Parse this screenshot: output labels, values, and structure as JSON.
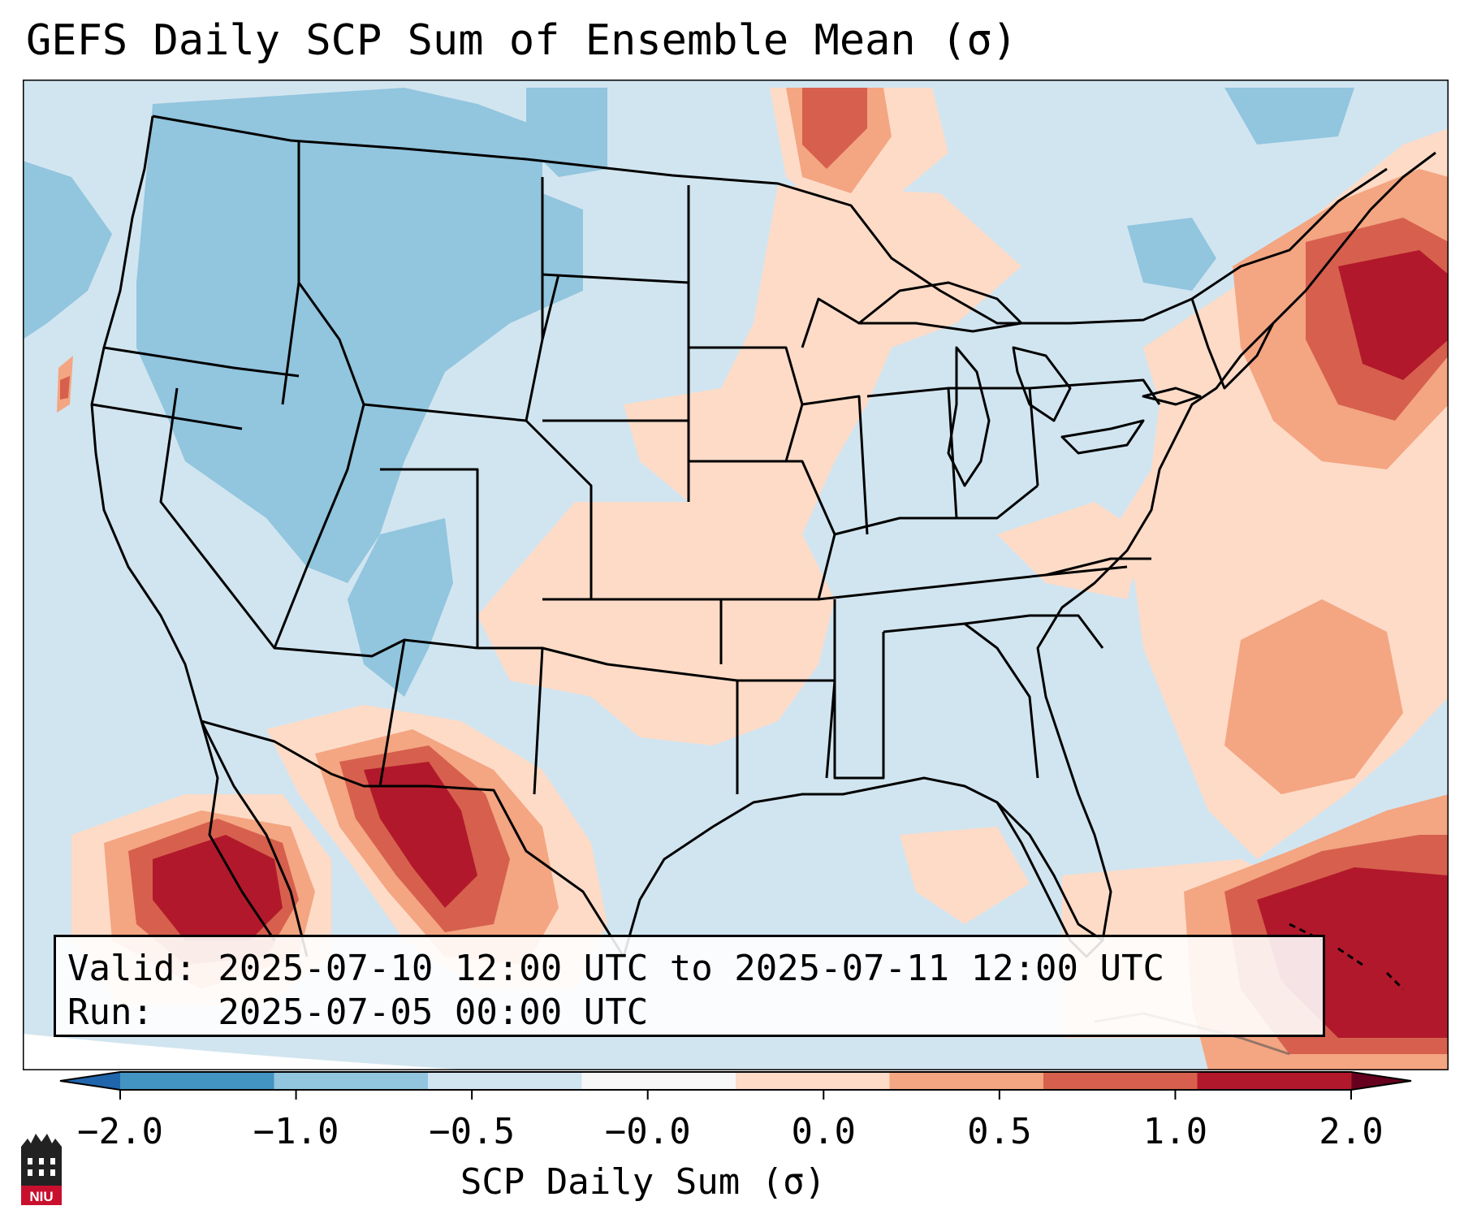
{
  "title": "GEFS Daily SCP Sum of Ensemble Mean (σ)",
  "info": {
    "valid_line": "Valid: 2025-07-10 12:00 UTC to 2025-07-11 12:00 UTC",
    "run_line": "Run:   2025-07-05 00:00 UTC"
  },
  "colorbar": {
    "label": "SCP Daily Sum (σ)",
    "ticks": [
      "−2.0",
      "−1.0",
      "−0.5",
      "−0.0",
      "0.0",
      "0.5",
      "1.0",
      "2.0"
    ],
    "colors": [
      "#4393c3",
      "#92c5de",
      "#d1e5f0",
      "#f7f7f7",
      "#fddbc7",
      "#f4a582",
      "#d6604d",
      "#b2182b"
    ]
  },
  "logo": {
    "text": "NIU"
  },
  "map": {
    "projection": "Lambert Conformal, CONUS",
    "dominant_value_class": "−0.5 to −0.0",
    "anomaly_regions": [
      {
        "name": "Northwest & Northern Rockies",
        "value_class": "−1.0 to −0.5"
      },
      {
        "name": "Northern Plains & Upper Midwest",
        "value_class": "0.0 to 0.5"
      },
      {
        "name": "Southern High Plains",
        "value_class": "0.0 to 0.5"
      },
      {
        "name": "Northeast & New England",
        "value_class": "1.0 to 2.0"
      },
      {
        "name": "Western Atlantic",
        "value_class": "0.0 to 1.0"
      },
      {
        "name": "Sonora / Chihuahua",
        "value_class": "1.0 to 2.0"
      },
      {
        "name": "Gulf of California / Eastern Pacific",
        "value_class": "1.0 to 2.0"
      },
      {
        "name": "Bahamas / Caribbean",
        "value_class": "1.0 to 2.0"
      }
    ]
  }
}
